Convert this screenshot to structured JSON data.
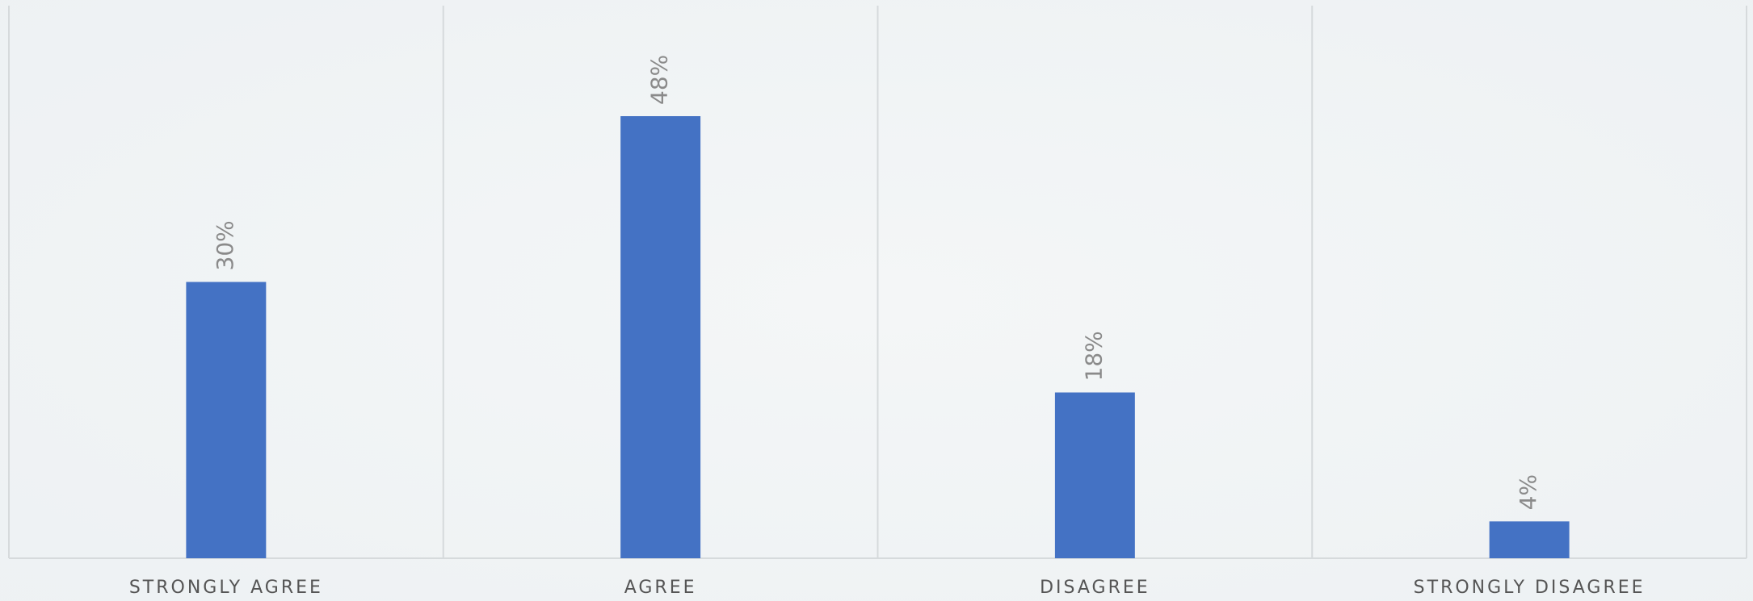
{
  "chart_data": {
    "type": "bar",
    "categories": [
      "STRONGLY AGREE",
      "AGREE",
      "DISAGREE",
      "STRONGLY DISAGREE"
    ],
    "values": [
      30,
      48,
      18,
      4
    ],
    "value_labels": [
      "30%",
      "48%",
      "18%",
      "4%"
    ],
    "color": "#4472c4",
    "ylim": [
      0,
      60
    ]
  }
}
